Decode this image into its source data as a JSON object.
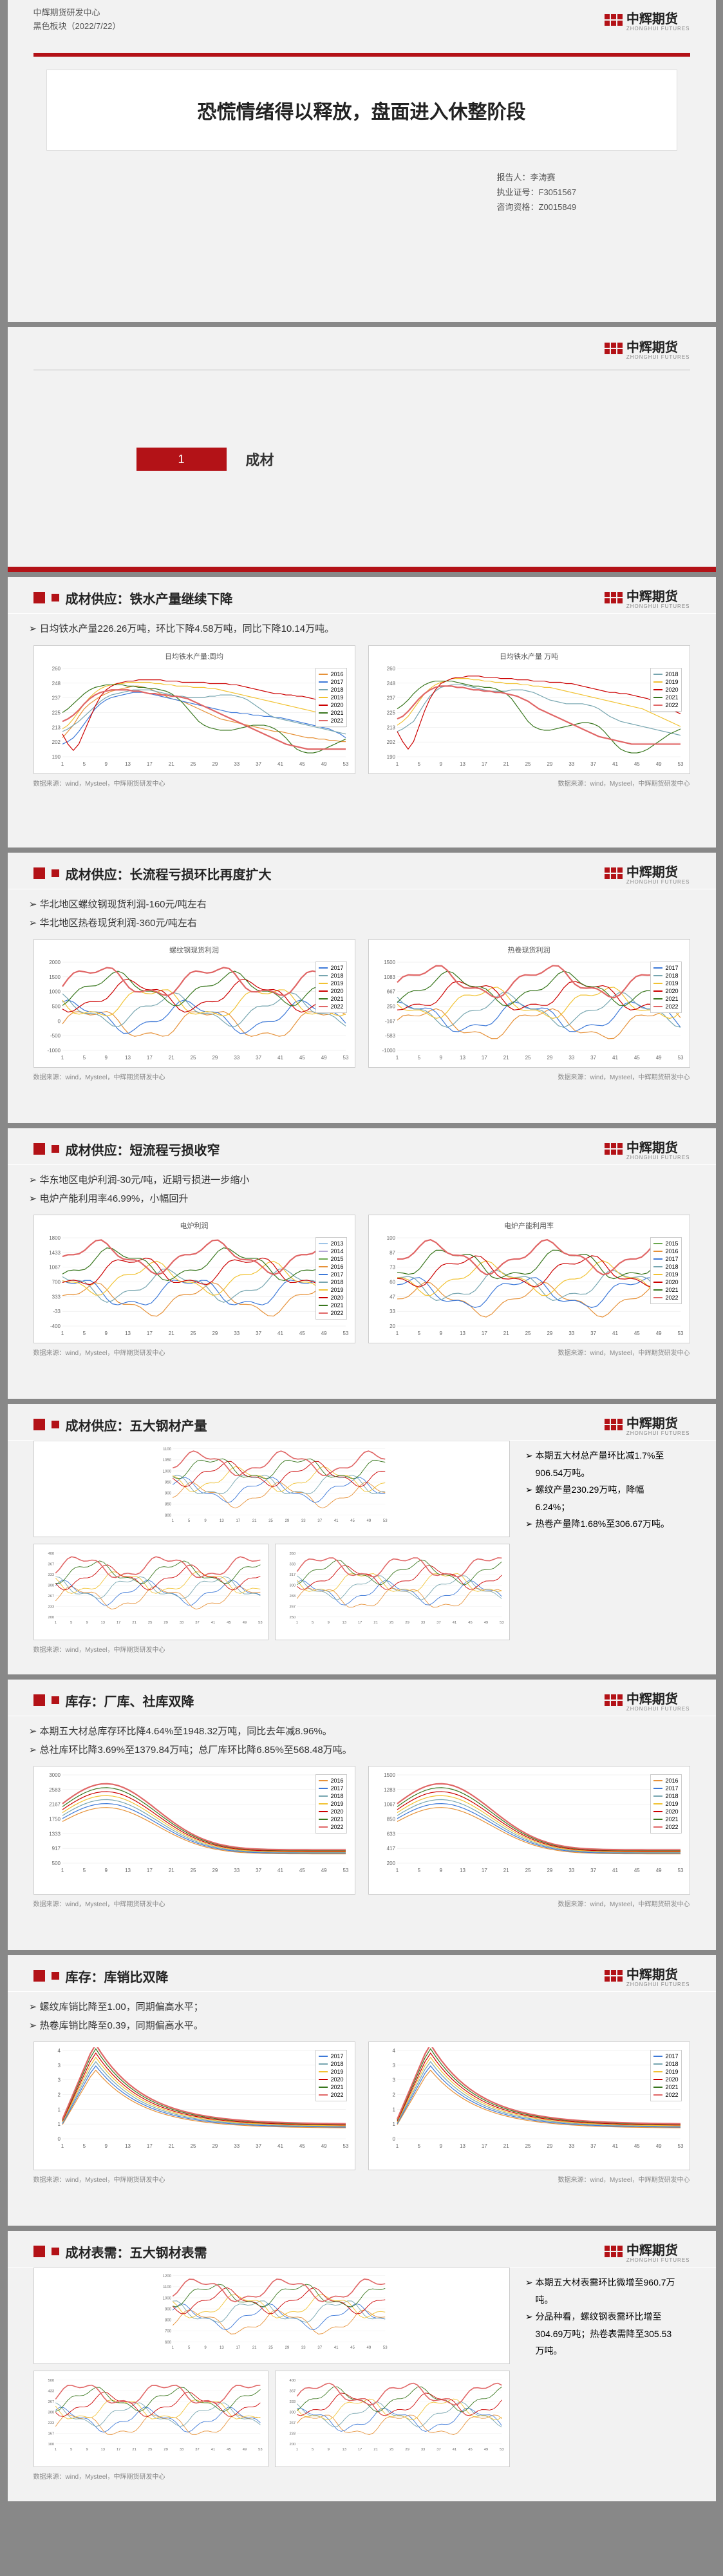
{
  "brand": {
    "name": "中辉期货",
    "sub": "ZHONGHUI FUTURES"
  },
  "cover": {
    "org": "中辉期货研发中心",
    "series": "黑色板块（2022/7/22）",
    "title": "恐慌情绪得以释放，盘面进入休整阶段",
    "author_label": "报告人：李涛赛",
    "license": "执业证号：F3051567",
    "consult": "咨询资格：Z0015849"
  },
  "section1": {
    "num": "1",
    "title": "成材"
  },
  "palette": {
    "y2015": "#6aa84f",
    "y2016": "#e69138",
    "y2017": "#3c78d8",
    "y2018": "#76a5af",
    "y2019": "#f1c232",
    "y2020": "#cc0000",
    "y2021": "#38761d",
    "y2022": "#e06666",
    "grid": "#e6e6e6",
    "axis": "#888888",
    "bg": "#ffffff"
  },
  "p3": {
    "title": "成材供应：铁水产量继续下降",
    "bullets": [
      "日均铁水产量226.26万吨，环比下降4.58万吨，同比下降10.14万吨。"
    ],
    "left": {
      "title": "日均铁水产量:周均",
      "ylabel": "万吨",
      "xrange": [
        1,
        53
      ],
      "yrange": [
        190,
        260
      ],
      "yticks": [
        190,
        200,
        210,
        220,
        230,
        240,
        250,
        260
      ],
      "series": {
        "2016": [
          205,
          210,
          215,
          222,
          228,
          232,
          235,
          238,
          240,
          242,
          243,
          244,
          245,
          246,
          246,
          245,
          244,
          242,
          240,
          238,
          236,
          235,
          234,
          232,
          230,
          228,
          226,
          224,
          222,
          220,
          219,
          218,
          217,
          216,
          215,
          214,
          213,
          212,
          211,
          210,
          210,
          209,
          208,
          207,
          206,
          205,
          205,
          204,
          204,
          203,
          203,
          202,
          202
        ],
        "2017": [
          200,
          202,
          205,
          210,
          216,
          222,
          228,
          232,
          235,
          237,
          238,
          239,
          240,
          241,
          241,
          241,
          240,
          239,
          238,
          237,
          236,
          235,
          234,
          233,
          232,
          231,
          230,
          229,
          228,
          227,
          226,
          225,
          225,
          224,
          224,
          223,
          223,
          222,
          222,
          221,
          221,
          220,
          219,
          218,
          217,
          216,
          215,
          214,
          213,
          212,
          210,
          208,
          205
        ],
        "2018": [
          210,
          212,
          215,
          218,
          222,
          226,
          230,
          234,
          237,
          239,
          240,
          241,
          242,
          243,
          243,
          243,
          243,
          242,
          241,
          240,
          239,
          238,
          238,
          237,
          237,
          237,
          237,
          238,
          238,
          239,
          239,
          239,
          238,
          237,
          235,
          232,
          229,
          226,
          223,
          221,
          220,
          219,
          218,
          217,
          216,
          215,
          214,
          213,
          212,
          211,
          210,
          209,
          208
        ],
        "2019": [
          212,
          215,
          220,
          226,
          232,
          237,
          241,
          244,
          246,
          247,
          248,
          248,
          249,
          249,
          249,
          249,
          249,
          248,
          248,
          247,
          247,
          246,
          246,
          246,
          245,
          245,
          245,
          244,
          244,
          243,
          242,
          241,
          240,
          239,
          238,
          237,
          236,
          235,
          234,
          233,
          232,
          231,
          230,
          229,
          228,
          227,
          226,
          225,
          224,
          222,
          220,
          218,
          215
        ],
        "2020": [
          208,
          200,
          195,
          200,
          210,
          220,
          230,
          238,
          243,
          246,
          248,
          249,
          250,
          250,
          251,
          251,
          251,
          251,
          251,
          250,
          250,
          250,
          249,
          249,
          249,
          249,
          249,
          248,
          248,
          248,
          248,
          247,
          247,
          246,
          245,
          244,
          243,
          242,
          241,
          240,
          240,
          239,
          239,
          238,
          238,
          237,
          236,
          235,
          234,
          232,
          230,
          228,
          225
        ],
        "2021": [
          225,
          228,
          232,
          236,
          240,
          243,
          245,
          246,
          247,
          247,
          247,
          247,
          246,
          246,
          245,
          245,
          244,
          244,
          243,
          242,
          240,
          237,
          233,
          228,
          223,
          218,
          215,
          213,
          212,
          211,
          211,
          211,
          212,
          213,
          214,
          215,
          215,
          215,
          214,
          212,
          209,
          205,
          200,
          196,
          194,
          193,
          193,
          194,
          196,
          198,
          200,
          202,
          204
        ],
        "2022": [
          218,
          220,
          223,
          227,
          232,
          236,
          239,
          241,
          242,
          243,
          243,
          243,
          243,
          242,
          242,
          241,
          240,
          240,
          239,
          239,
          238,
          238,
          237,
          236,
          234,
          232,
          230,
          228,
          226,
          224,
          222,
          220,
          218,
          216,
          214,
          212,
          210,
          208,
          206,
          204,
          202,
          200,
          199,
          198,
          197,
          196,
          196,
          196,
          196,
          196,
          196,
          196,
          196
        ]
      }
    },
    "right": {
      "title": "日均铁水产量 万吨",
      "xrange": [
        1,
        53
      ],
      "yrange": [
        190,
        260
      ],
      "series": {
        "2018": [
          210,
          212,
          215,
          218,
          225,
          232,
          238,
          242,
          245,
          246,
          247,
          247,
          247,
          246,
          245,
          244,
          243,
          242,
          242,
          242,
          242,
          243,
          243,
          243,
          242,
          241,
          239,
          237,
          235,
          234,
          233,
          232,
          232,
          232,
          232,
          231,
          230,
          228,
          225,
          222,
          220,
          218,
          217,
          216,
          215,
          214,
          213,
          212,
          211,
          210,
          209,
          208,
          207
        ],
        "2019": [
          215,
          218,
          222,
          228,
          234,
          240,
          244,
          247,
          249,
          250,
          252,
          252,
          252,
          252,
          251,
          251,
          250,
          250,
          249,
          249,
          248,
          248,
          248,
          247,
          247,
          246,
          246,
          245,
          245,
          244,
          243,
          242,
          241,
          240,
          239,
          238,
          237,
          236,
          235,
          234,
          233,
          232,
          231,
          230,
          229,
          228,
          226,
          224,
          222,
          220,
          218,
          216,
          214
        ],
        "2020": [
          210,
          202,
          196,
          202,
          214,
          226,
          236,
          243,
          248,
          250,
          252,
          253,
          253,
          254,
          254,
          254,
          253,
          253,
          253,
          252,
          252,
          252,
          251,
          251,
          251,
          250,
          250,
          250,
          249,
          249,
          249,
          248,
          248,
          247,
          246,
          245,
          244,
          243,
          242,
          241,
          241,
          240,
          240,
          239,
          238,
          237,
          236,
          234,
          232,
          230,
          228,
          226,
          224
        ],
        "2021": [
          228,
          231,
          235,
          240,
          244,
          247,
          249,
          250,
          250,
          250,
          250,
          249,
          248,
          247,
          246,
          246,
          245,
          245,
          244,
          242,
          240,
          236,
          230,
          224,
          218,
          214,
          212,
          211,
          211,
          212,
          213,
          214,
          215,
          216,
          217,
          217,
          216,
          214,
          210,
          205,
          200,
          196,
          194,
          193,
          193,
          194,
          196,
          199,
          202,
          205,
          208,
          210,
          212
        ],
        "2022": [
          220,
          222,
          226,
          231,
          236,
          240,
          243,
          245,
          246,
          246,
          246,
          245,
          245,
          244,
          243,
          243,
          242,
          242,
          241,
          241,
          240,
          239,
          238,
          236,
          234,
          231,
          228,
          226,
          224,
          222,
          220,
          218,
          216,
          214,
          212,
          210,
          208,
          206,
          205,
          204,
          203,
          202,
          201,
          200,
          200,
          200,
          200,
          200,
          200,
          200,
          200,
          200,
          200
        ]
      }
    },
    "src_left": "数据来源：wind，Mysteel，中辉期货研发中心",
    "src_right": "数据来源：wind，Mysteel，中辉期货研发中心"
  },
  "p4": {
    "title": "成材供应：长流程亏损环比再度扩大",
    "bullets": [
      "华北地区螺纹钢现货利润-160元/吨左右",
      "华北地区热卷现货利润-360元/吨左右"
    ],
    "left": {
      "title": "螺纹钢现货利润",
      "yrange": [
        -1000,
        2000
      ],
      "xrange": [
        1,
        53
      ]
    },
    "right": {
      "title": "热卷现货利润",
      "yrange": [
        -1000,
        1500
      ],
      "xrange": [
        1,
        53
      ]
    }
  },
  "p5": {
    "title": "成材供应：短流程亏损收窄",
    "bullets": [
      "华东地区电炉利润-30元/吨，近期亏损进一步缩小",
      "电炉产能利用率46.99%，小幅回升"
    ],
    "left": {
      "title": "电炉利润",
      "yrange": [
        -400,
        1800
      ]
    },
    "right": {
      "title": "电炉产能利用率",
      "yrange": [
        20,
        100
      ]
    }
  },
  "p6": {
    "title": "成材供应：五大钢材产量",
    "bullets": [
      "本期五大材总产量环比减1.7%至906.54万吨。",
      "螺纹产量230.29万吨，降幅6.24%；",
      "热卷产量降1.68%至306.67万吨。"
    ]
  },
  "p7": {
    "title": "库存：厂库、社库双降",
    "bullets": [
      "本期五大材总库存环比降4.64%至1948.32万吨，同比去年减8.96%。",
      "总社库环比降3.69%至1379.84万吨；总厂库环比降6.85%至568.48万吨。"
    ]
  },
  "p8": {
    "title": "库存：库销比双降",
    "bullets": [
      "螺纹库销比降至1.00，同期偏高水平；",
      "热卷库销比降至0.39，同期偏高水平。"
    ]
  },
  "p9": {
    "title": "成材表需：五大钢材表需",
    "bullets": [
      "本期五大材表需环比微增至960.7万吨。",
      "分品种看，螺纹钢表需环比增至304.69万吨；热卷表需降至305.53万吨。"
    ]
  },
  "years_full": [
    "2015",
    "2016",
    "2017",
    "2018",
    "2019",
    "2020",
    "2021",
    "2022"
  ]
}
